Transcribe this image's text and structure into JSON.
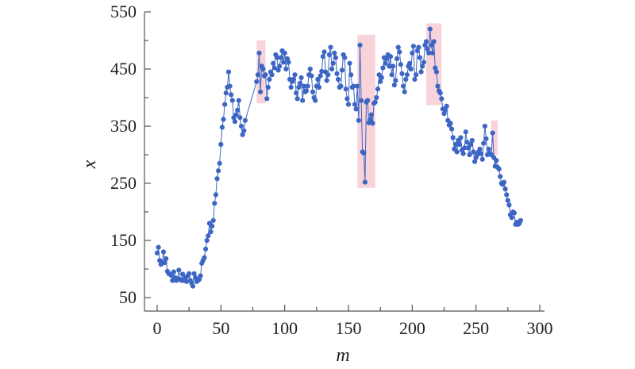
{
  "chart_data": {
    "type": "scatter",
    "xlabel": "m",
    "ylabel": "x",
    "xlim": [
      -10,
      300
    ],
    "ylim": [
      35,
      550
    ],
    "xticks": [
      0,
      50,
      100,
      150,
      200,
      250,
      300
    ],
    "yticks": [
      50,
      150,
      250,
      350,
      450,
      550
    ],
    "grid": false,
    "series_color": "#3d66c4",
    "highlight_color": "#f6c4cd",
    "highlights": [
      {
        "x0": 78,
        "x1": 85,
        "y0": 390,
        "y1": 500
      },
      {
        "x0": 157,
        "x1": 171,
        "y0": 242,
        "y1": 510
      },
      {
        "x0": 211,
        "x1": 223,
        "y0": 387,
        "y1": 530
      },
      {
        "x0": 262,
        "x1": 267,
        "y0": 300,
        "y1": 360
      }
    ],
    "series": [
      {
        "values": [
          [
            0,
            128
          ],
          [
            1,
            138
          ],
          [
            2,
            115
          ],
          [
            3,
            108
          ],
          [
            4,
            112
          ],
          [
            5,
            130
          ],
          [
            6,
            111
          ],
          [
            7,
            118
          ],
          [
            8,
            96
          ],
          [
            9,
            92
          ],
          [
            10,
            91
          ],
          [
            11,
            89
          ],
          [
            12,
            80
          ],
          [
            13,
            95
          ],
          [
            14,
            85
          ],
          [
            15,
            80
          ],
          [
            16,
            83
          ],
          [
            17,
            98
          ],
          [
            18,
            82
          ],
          [
            19,
            80
          ],
          [
            20,
            91
          ],
          [
            21,
            80
          ],
          [
            22,
            85
          ],
          [
            23,
            78
          ],
          [
            24,
            88
          ],
          [
            25,
            92
          ],
          [
            26,
            80
          ],
          [
            27,
            75
          ],
          [
            28,
            70
          ],
          [
            29,
            92
          ],
          [
            30,
            85
          ],
          [
            31,
            78
          ],
          [
            32,
            80
          ],
          [
            33,
            82
          ],
          [
            34,
            88
          ],
          [
            35,
            110
          ],
          [
            36,
            115
          ],
          [
            37,
            120
          ],
          [
            38,
            135
          ],
          [
            39,
            150
          ],
          [
            40,
            158
          ],
          [
            41,
            180
          ],
          [
            42,
            165
          ],
          [
            43,
            175
          ],
          [
            44,
            185
          ],
          [
            45,
            215
          ],
          [
            46,
            230
          ],
          [
            47,
            258
          ],
          [
            48,
            272
          ],
          [
            49,
            285
          ],
          [
            50,
            318
          ],
          [
            51,
            348
          ],
          [
            52,
            362
          ],
          [
            53,
            388
          ],
          [
            54,
            408
          ],
          [
            55,
            418
          ],
          [
            56,
            445
          ],
          [
            57,
            420
          ],
          [
            58,
            405
          ],
          [
            59,
            395
          ],
          [
            60,
            365
          ],
          [
            61,
            358
          ],
          [
            62,
            370
          ],
          [
            63,
            378
          ],
          [
            64,
            395
          ],
          [
            65,
            365
          ],
          [
            66,
            350
          ],
          [
            67,
            335
          ],
          [
            68,
            342
          ],
          [
            69,
            360
          ],
          [
            78,
            428
          ],
          [
            79,
            440
          ],
          [
            80,
            478
          ],
          [
            81,
            410
          ],
          [
            82,
            455
          ],
          [
            83,
            450
          ],
          [
            84,
            438
          ],
          [
            85,
            440
          ],
          [
            86,
            398
          ],
          [
            87,
            418
          ],
          [
            88,
            432
          ],
          [
            89,
            445
          ],
          [
            90,
            440
          ],
          [
            91,
            460
          ],
          [
            92,
            452
          ],
          [
            93,
            475
          ],
          [
            94,
            470
          ],
          [
            95,
            448
          ],
          [
            96,
            455
          ],
          [
            97,
            470
          ],
          [
            98,
            482
          ],
          [
            99,
            462
          ],
          [
            100,
            478
          ],
          [
            101,
            450
          ],
          [
            102,
            468
          ],
          [
            103,
            462
          ],
          [
            104,
            432
          ],
          [
            105,
            418
          ],
          [
            106,
            428
          ],
          [
            107,
            432
          ],
          [
            108,
            440
          ],
          [
            109,
            408
          ],
          [
            110,
            398
          ],
          [
            111,
            418
          ],
          [
            112,
            425
          ],
          [
            113,
            435
          ],
          [
            114,
            395
          ],
          [
            115,
            420
          ],
          [
            116,
            410
          ],
          [
            117,
            412
          ],
          [
            118,
            420
          ],
          [
            119,
            440
          ],
          [
            120,
            450
          ],
          [
            121,
            438
          ],
          [
            122,
            410
          ],
          [
            123,
            400
          ],
          [
            124,
            395
          ],
          [
            125,
            420
          ],
          [
            126,
            432
          ],
          [
            127,
            418
          ],
          [
            128,
            438
          ],
          [
            129,
            446
          ],
          [
            130,
            472
          ],
          [
            131,
            480
          ],
          [
            132,
            445
          ],
          [
            133,
            430
          ],
          [
            134,
            440
          ],
          [
            135,
            475
          ],
          [
            136,
            488
          ],
          [
            137,
            450
          ],
          [
            138,
            460
          ],
          [
            139,
            478
          ],
          [
            140,
            470
          ],
          [
            141,
            442
          ],
          [
            142,
            432
          ],
          [
            143,
            418
          ],
          [
            144,
            420
          ],
          [
            145,
            448
          ],
          [
            146,
            475
          ],
          [
            147,
            470
          ],
          [
            148,
            415
          ],
          [
            149,
            398
          ],
          [
            150,
            388
          ],
          [
            151,
            460
          ],
          [
            152,
            440
          ],
          [
            153,
            418
          ],
          [
            154,
            420
          ],
          [
            155,
            388
          ],
          [
            156,
            380
          ],
          [
            157,
            420
          ],
          [
            158,
            360
          ],
          [
            159,
            492
          ],
          [
            160,
            395
          ],
          [
            161,
            305
          ],
          [
            162,
            303
          ],
          [
            163,
            252
          ],
          [
            164,
            392
          ],
          [
            165,
            395
          ],
          [
            166,
            356
          ],
          [
            167,
            362
          ],
          [
            168,
            370
          ],
          [
            169,
            355
          ],
          [
            170,
            390
          ],
          [
            171,
            392
          ],
          [
            172,
            400
          ],
          [
            173,
            415
          ],
          [
            174,
            440
          ],
          [
            175,
            428
          ],
          [
            176,
            435
          ],
          [
            177,
            452
          ],
          [
            178,
            470
          ],
          [
            179,
            460
          ],
          [
            180,
            468
          ],
          [
            181,
            475
          ],
          [
            182,
            455
          ],
          [
            183,
            472
          ],
          [
            184,
            440
          ],
          [
            185,
            455
          ],
          [
            186,
            422
          ],
          [
            187,
            430
          ],
          [
            188,
            468
          ],
          [
            189,
            488
          ],
          [
            190,
            480
          ],
          [
            191,
            458
          ],
          [
            192,
            442
          ],
          [
            193,
            420
          ],
          [
            194,
            410
          ],
          [
            195,
            432
          ],
          [
            196,
            440
          ],
          [
            197,
            455
          ],
          [
            198,
            460
          ],
          [
            199,
            450
          ],
          [
            200,
            478
          ],
          [
            201,
            490
          ],
          [
            202,
            432
          ],
          [
            203,
            440
          ],
          [
            204,
            482
          ],
          [
            205,
            488
          ],
          [
            206,
            470
          ],
          [
            207,
            445
          ],
          [
            208,
            455
          ],
          [
            209,
            462
          ],
          [
            210,
            492
          ],
          [
            211,
            498
          ],
          [
            212,
            485
          ],
          [
            213,
            478
          ],
          [
            214,
            520
          ],
          [
            215,
            492
          ],
          [
            216,
            478
          ],
          [
            217,
            498
          ],
          [
            218,
            452
          ],
          [
            219,
            445
          ],
          [
            220,
            420
          ],
          [
            221,
            412
          ],
          [
            222,
            408
          ],
          [
            223,
            398
          ],
          [
            224,
            380
          ],
          [
            225,
            372
          ],
          [
            226,
            378
          ],
          [
            227,
            385
          ],
          [
            228,
            360
          ],
          [
            229,
            352
          ],
          [
            230,
            355
          ],
          [
            231,
            345
          ],
          [
            232,
            330
          ],
          [
            233,
            310
          ],
          [
            234,
            318
          ],
          [
            235,
            305
          ],
          [
            236,
            325
          ],
          [
            237,
            318
          ],
          [
            238,
            330
          ],
          [
            239,
            308
          ],
          [
            240,
            302
          ],
          [
            241,
            312
          ],
          [
            242,
            340
          ],
          [
            243,
            322
          ],
          [
            244,
            312
          ],
          [
            245,
            300
          ],
          [
            246,
            318
          ],
          [
            247,
            325
          ],
          [
            248,
            305
          ],
          [
            249,
            288
          ],
          [
            250,
            295
          ],
          [
            251,
            300
          ],
          [
            252,
            305
          ],
          [
            253,
            310
          ],
          [
            254,
            302
          ],
          [
            255,
            292
          ],
          [
            256,
            320
          ],
          [
            257,
            350
          ],
          [
            258,
            328
          ],
          [
            259,
            300
          ],
          [
            260,
            310
          ],
          [
            261,
            302
          ],
          [
            262,
            300
          ],
          [
            263,
            338
          ],
          [
            264,
            295
          ],
          [
            265,
            280
          ],
          [
            266,
            290
          ],
          [
            267,
            278
          ],
          [
            268,
            275
          ],
          [
            269,
            262
          ],
          [
            270,
            250
          ],
          [
            271,
            248
          ],
          [
            272,
            252
          ],
          [
            273,
            240
          ],
          [
            274,
            230
          ],
          [
            275,
            220
          ],
          [
            276,
            212
          ],
          [
            277,
            195
          ],
          [
            278,
            190
          ],
          [
            279,
            200
          ],
          [
            280,
            198
          ],
          [
            281,
            178
          ],
          [
            282,
            182
          ],
          [
            283,
            178
          ],
          [
            284,
            180
          ],
          [
            285,
            185
          ]
        ]
      }
    ]
  }
}
